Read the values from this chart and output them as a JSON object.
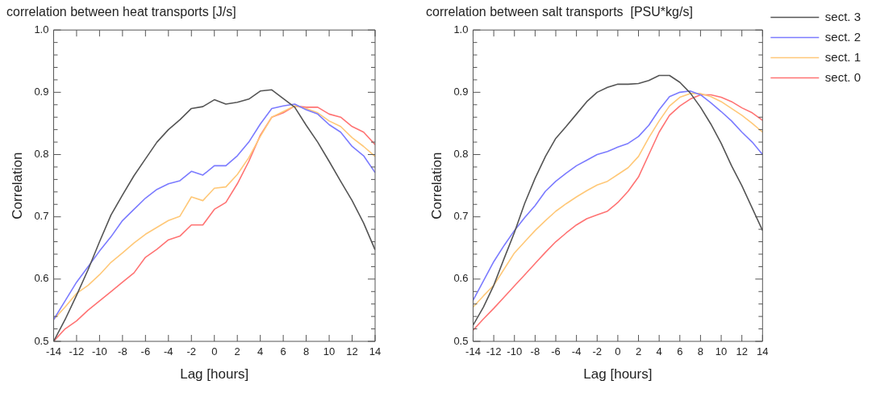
{
  "chart_data": [
    {
      "type": "line",
      "title": "correlation between heat transports [J/s]",
      "xlabel": "Lag [hours]",
      "ylabel": "Correlation",
      "x": [
        -14,
        -13,
        -12,
        -11,
        -10,
        -9,
        -8,
        -7,
        -6,
        -5,
        -4,
        -3,
        -2,
        -1,
        0,
        1,
        2,
        3,
        4,
        5,
        6,
        7,
        8,
        9,
        10,
        11,
        12,
        13,
        14
      ],
      "xlim": [
        -14,
        14
      ],
      "xticks": [
        -14,
        -12,
        -10,
        -8,
        -6,
        -4,
        -2,
        0,
        2,
        4,
        6,
        8,
        10,
        12,
        14
      ],
      "ylim": [
        0.5,
        1.0
      ],
      "yticks": [
        0.5,
        {
          "value": 0.52,
          "label": null
        },
        {
          "value": 0.54,
          "label": null
        },
        {
          "value": 0.56,
          "label": null
        },
        {
          "value": 0.58,
          "label": null
        },
        0.6,
        {
          "value": 0.62,
          "label": null
        },
        {
          "value": 0.64,
          "label": null
        },
        {
          "value": 0.66,
          "label": null
        },
        {
          "value": 0.68,
          "label": null
        },
        0.7,
        {
          "value": 0.72,
          "label": null
        },
        {
          "value": 0.74,
          "label": null
        },
        {
          "value": 0.76,
          "label": null
        },
        {
          "value": 0.78,
          "label": null
        },
        0.8,
        {
          "value": 0.82,
          "label": null
        },
        {
          "value": 0.84,
          "label": null
        },
        {
          "value": 0.86,
          "label": null
        },
        {
          "value": 0.88,
          "label": null
        },
        0.9,
        {
          "value": 0.92,
          "label": null
        },
        {
          "value": 0.94,
          "label": null
        },
        {
          "value": 0.96,
          "label": null
        },
        {
          "value": 0.98,
          "label": null
        },
        {
          "value": 1.0,
          "label": "1.0"
        }
      ],
      "series": [
        {
          "color": "#555555",
          "values": [
            0.5,
            0.535,
            0.574,
            0.615,
            0.66,
            0.703,
            0.735,
            0.766,
            0.793,
            0.82,
            0.84,
            0.856,
            0.874,
            0.877,
            0.888,
            0.881,
            0.884,
            0.889,
            0.902,
            0.904,
            0.89,
            0.876,
            0.847,
            0.82,
            0.789,
            0.757,
            0.726,
            0.69,
            0.647
          ]
        },
        {
          "color": "#7b7bff",
          "values": [
            0.535,
            0.565,
            0.595,
            0.62,
            0.645,
            0.668,
            0.694,
            0.712,
            0.73,
            0.744,
            0.753,
            0.758,
            0.773,
            0.767,
            0.782,
            0.782,
            0.798,
            0.82,
            0.849,
            0.874,
            0.878,
            0.881,
            0.872,
            0.865,
            0.848,
            0.836,
            0.813,
            0.798,
            0.771
          ]
        },
        {
          "color": "#ffc878",
          "values": [
            0.535,
            0.555,
            0.577,
            0.59,
            0.607,
            0.627,
            0.642,
            0.658,
            0.672,
            0.683,
            0.694,
            0.701,
            0.732,
            0.726,
            0.746,
            0.748,
            0.768,
            0.795,
            0.829,
            0.86,
            0.869,
            0.878,
            0.874,
            0.867,
            0.854,
            0.845,
            0.827,
            0.813,
            0.797
          ]
        },
        {
          "color": "#ff7373",
          "values": [
            0.5,
            0.52,
            0.533,
            0.55,
            0.565,
            0.58,
            0.595,
            0.61,
            0.635,
            0.648,
            0.663,
            0.669,
            0.687,
            0.687,
            0.712,
            0.723,
            0.753,
            0.789,
            0.831,
            0.86,
            0.867,
            0.878,
            0.876,
            0.876,
            0.865,
            0.86,
            0.845,
            0.836,
            0.816
          ]
        }
      ]
    },
    {
      "type": "line",
      "title": "correlation between salt transports  [PSU*kg/s]",
      "xlabel": "Lag [hours]",
      "ylabel": "Correlation",
      "legend": "top right",
      "x": [
        -14,
        -13,
        -12,
        -11,
        -10,
        -9,
        -8,
        -7,
        -6,
        -5,
        -4,
        -3,
        -2,
        -1,
        0,
        1,
        2,
        3,
        4,
        5,
        6,
        7,
        8,
        9,
        10,
        11,
        12,
        13,
        14
      ],
      "xlim": [
        -14,
        14
      ],
      "xticks": [
        -14,
        -12,
        -10,
        -8,
        -6,
        -4,
        -2,
        0,
        2,
        4,
        6,
        8,
        10,
        12,
        14
      ],
      "ylim": [
        0.5,
        1.0
      ],
      "yticks": [
        0.5,
        {
          "value": 0.52,
          "label": null
        },
        {
          "value": 0.54,
          "label": null
        },
        {
          "value": 0.56,
          "label": null
        },
        {
          "value": 0.58,
          "label": null
        },
        0.6,
        {
          "value": 0.62,
          "label": null
        },
        {
          "value": 0.64,
          "label": null
        },
        {
          "value": 0.66,
          "label": null
        },
        {
          "value": 0.68,
          "label": null
        },
        0.7,
        {
          "value": 0.72,
          "label": null
        },
        {
          "value": 0.74,
          "label": null
        },
        {
          "value": 0.76,
          "label": null
        },
        {
          "value": 0.78,
          "label": null
        },
        0.8,
        {
          "value": 0.82,
          "label": null
        },
        {
          "value": 0.84,
          "label": null
        },
        {
          "value": 0.86,
          "label": null
        },
        {
          "value": 0.88,
          "label": null
        },
        0.9,
        {
          "value": 0.92,
          "label": null
        },
        {
          "value": 0.94,
          "label": null
        },
        {
          "value": 0.96,
          "label": null
        },
        {
          "value": 0.98,
          "label": null
        },
        {
          "value": 1.0,
          "label": "1.0"
        }
      ],
      "series": [
        {
          "name": "sect. 3",
          "color": "#555555",
          "values": [
            0.526,
            0.555,
            0.59,
            0.633,
            0.675,
            0.722,
            0.762,
            0.797,
            0.826,
            0.845,
            0.865,
            0.885,
            0.9,
            0.908,
            0.913,
            0.913,
            0.914,
            0.919,
            0.927,
            0.927,
            0.916,
            0.899,
            0.876,
            0.849,
            0.818,
            0.782,
            0.75,
            0.714,
            0.678
          ]
        },
        {
          "name": "sect. 2",
          "color": "#7b7bff",
          "values": [
            0.566,
            0.597,
            0.628,
            0.654,
            0.678,
            0.699,
            0.718,
            0.741,
            0.757,
            0.77,
            0.782,
            0.791,
            0.8,
            0.805,
            0.812,
            0.818,
            0.829,
            0.847,
            0.872,
            0.893,
            0.9,
            0.902,
            0.896,
            0.883,
            0.869,
            0.854,
            0.836,
            0.82,
            0.8
          ]
        },
        {
          "name": "sect. 1",
          "color": "#ffc878",
          "values": [
            0.555,
            0.573,
            0.59,
            0.616,
            0.642,
            0.66,
            0.678,
            0.694,
            0.709,
            0.721,
            0.732,
            0.742,
            0.751,
            0.757,
            0.768,
            0.779,
            0.797,
            0.827,
            0.854,
            0.878,
            0.892,
            0.898,
            0.898,
            0.893,
            0.885,
            0.874,
            0.863,
            0.85,
            0.836
          ]
        },
        {
          "name": "sect. 0",
          "color": "#ff7373",
          "values": [
            0.518,
            0.536,
            0.553,
            0.571,
            0.589,
            0.607,
            0.625,
            0.643,
            0.66,
            0.674,
            0.687,
            0.697,
            0.703,
            0.709,
            0.723,
            0.741,
            0.764,
            0.8,
            0.836,
            0.863,
            0.878,
            0.889,
            0.896,
            0.896,
            0.892,
            0.885,
            0.875,
            0.867,
            0.855
          ]
        }
      ]
    }
  ]
}
